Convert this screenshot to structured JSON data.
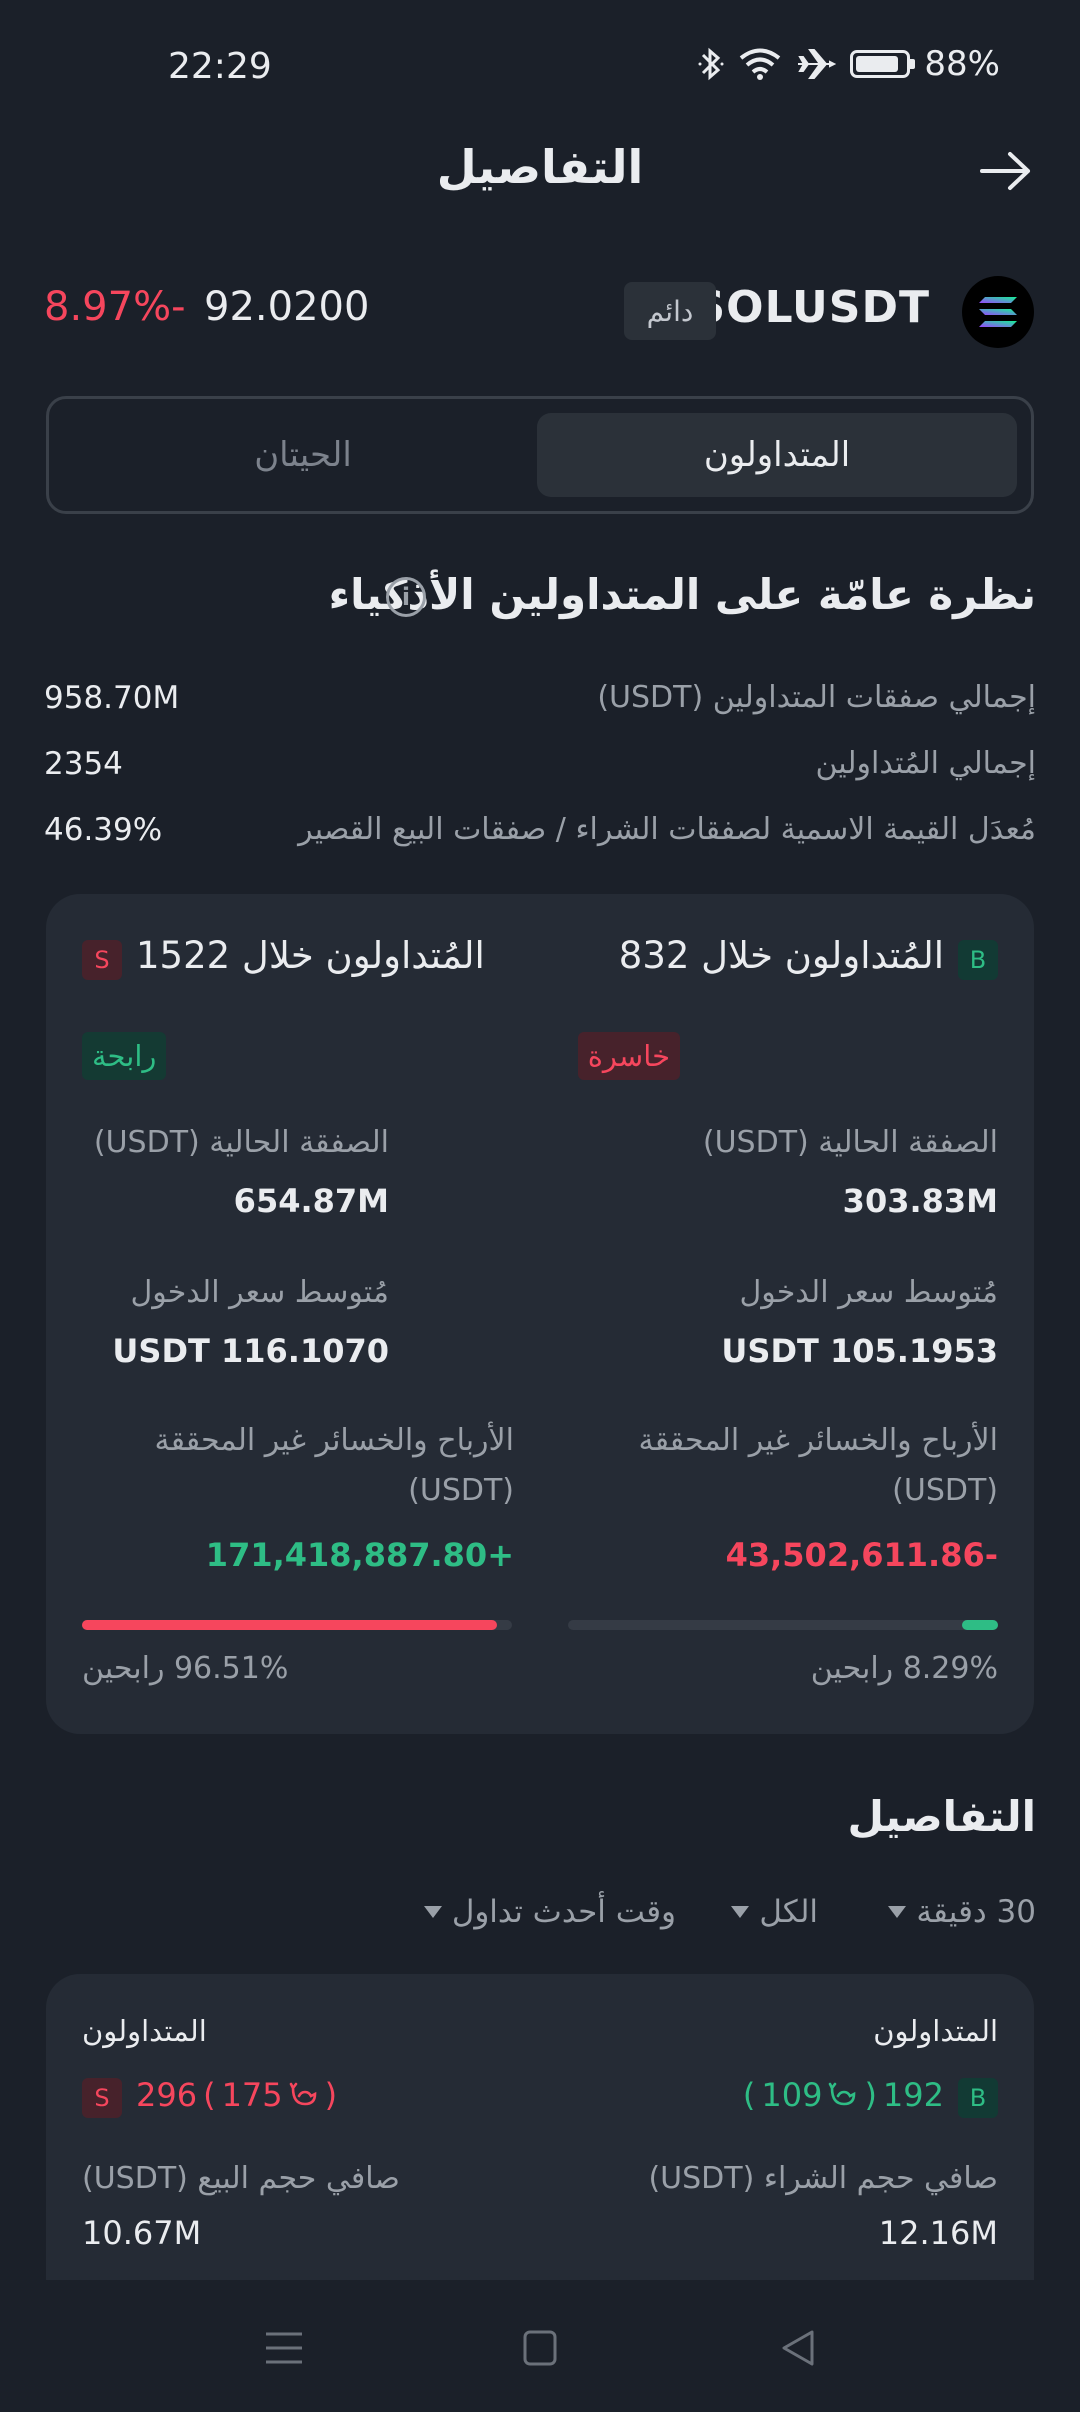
{
  "status": {
    "time": "22:29",
    "battery": "88%",
    "battery_level": 0.88
  },
  "header": {
    "title": "التفاصيل"
  },
  "ticker": {
    "symbol": "SOLUSDT",
    "type_badge": "دائم",
    "price": "92.0200",
    "change": "8.97%-"
  },
  "tabs": {
    "active": "المتداولون",
    "inactive": "الحيتان"
  },
  "overview": {
    "title": "نظرة عامّة على المتداولين الأذكياء",
    "rows": [
      {
        "label": "إجمالي صفقات المتداولين (USDT)",
        "value": "958.70M"
      },
      {
        "label": "إجمالي المُتداولين",
        "value": "2354"
      },
      {
        "label": "مُعدَل القيمة الاسمية لصفقات الشراء / صفقات البيع القصير",
        "value": "46.39%"
      }
    ]
  },
  "long": {
    "badge": "B",
    "title": "المُتداولون خلال 832",
    "status": "خاسرة",
    "position_label": "الصفقة الحالية (USDT)",
    "position_value": "303.83M",
    "entry_label": "مُتوسط سعر الدخول",
    "entry_value": "USDT 105.1953",
    "pnl_label_1": "الأرباح والخسائر غير المحققة",
    "pnl_label_2": "(USDT)",
    "pnl_value": "43,502,611.86-",
    "win_rate": 0.0829,
    "win_text": "8.29% رابحين"
  },
  "short": {
    "badge": "S",
    "title": "المُتداولون خلال 1522",
    "status": "رابحة",
    "position_label": "الصفقة الحالية (USDT)",
    "position_value": "654.87M",
    "entry_label": "مُتوسط سعر الدخول",
    "entry_value": "USDT 116.1070",
    "pnl_label_1": "الأرباح والخسائر غير المحققة",
    "pnl_label_2": "(USDT)",
    "pnl_value": "171,418,887.80+",
    "win_rate": 0.9651,
    "win_text": "96.51% رابحين"
  },
  "details": {
    "title": "التفاصيل",
    "filters": {
      "interval": "30 دقيقة",
      "scope": "الكل",
      "sort": "وقت أحدث تداول"
    },
    "long": {
      "label": "المتداولون",
      "count": "192",
      "whales": "109",
      "badge": "B",
      "vol_label": "صافي حجم الشراء (USDT)",
      "vol_value": "12.16M"
    },
    "short": {
      "label": "المتداولون",
      "count": "296",
      "whales": "175",
      "badge": "S",
      "vol_label": "صافي حجم البيع (USDT)",
      "vol_value": "10.67M"
    }
  },
  "colors": {
    "bg": "#1b2029",
    "card": "#252b35",
    "green": "#2ebd85",
    "red": "#f6465d"
  }
}
